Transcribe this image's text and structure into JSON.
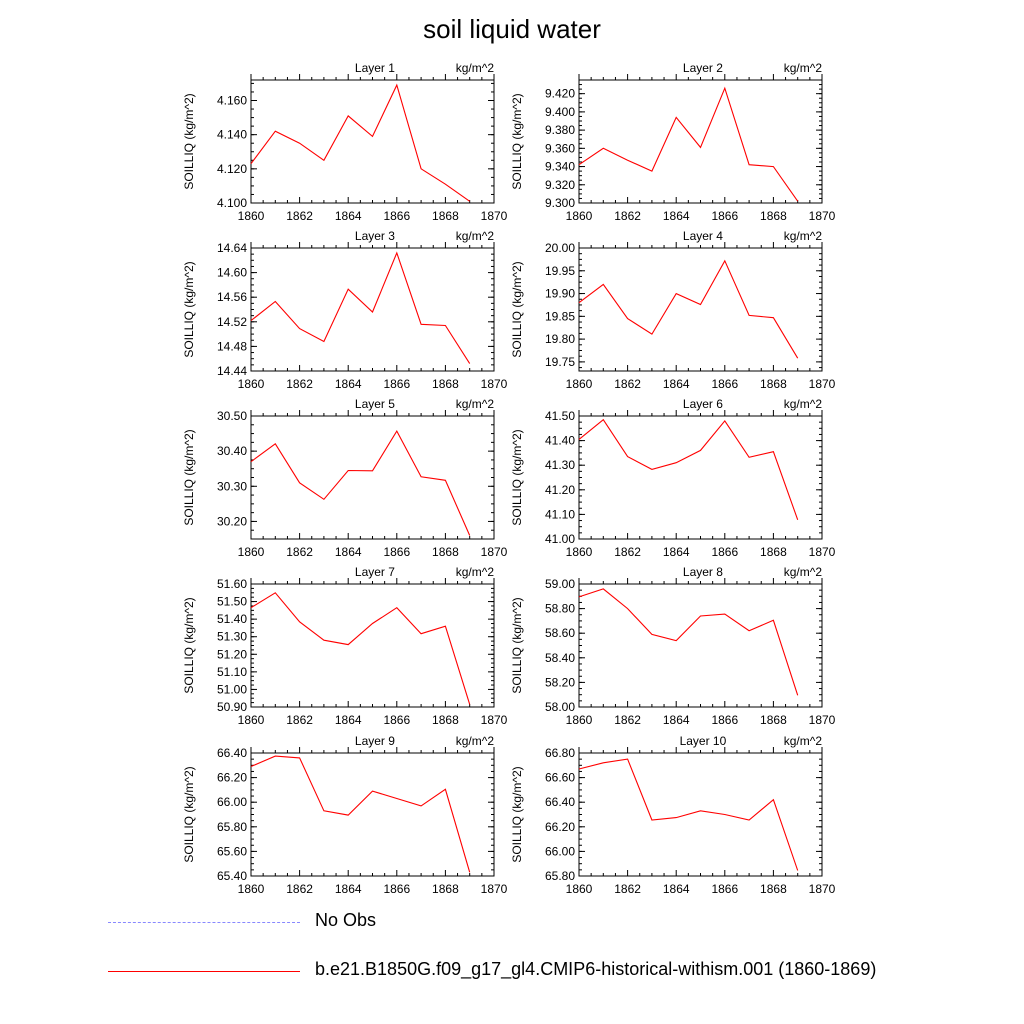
{
  "title": "soil liquid water",
  "legend": [
    {
      "label": "No Obs",
      "color": "#8888ff",
      "style": "dashed"
    },
    {
      "label": "b.e21.B1850G.f09_g17_gl4.CMIP6-historical-withism.001 (1860-1869)",
      "color": "#ff0000",
      "style": "solid"
    }
  ],
  "chart_data": [
    {
      "type": "line",
      "title": "Layer 1",
      "units": "kg/m^2",
      "ylabel": "SOILLIQ  (kg/m^2)",
      "x": [
        1860,
        1861,
        1862,
        1863,
        1864,
        1865,
        1866,
        1867,
        1868,
        1869
      ],
      "xlim": [
        1860,
        1870
      ],
      "xticks": [
        "1860",
        "1862",
        "1864",
        "1866",
        "1868",
        "1870"
      ],
      "ylim": [
        4.1,
        4.172
      ],
      "yticks": [
        "4.100",
        "4.120",
        "4.140",
        "4.160"
      ],
      "series": [
        {
          "values": [
            4.123,
            4.142,
            4.135,
            4.125,
            4.151,
            4.139,
            4.169,
            4.12,
            4.111,
            4.101
          ],
          "color": "#ff0000"
        }
      ]
    },
    {
      "type": "line",
      "title": "Layer 2",
      "units": "kg/m^2",
      "ylabel": "SOILLIQ  (kg/m^2)",
      "x": [
        1860,
        1861,
        1862,
        1863,
        1864,
        1865,
        1866,
        1867,
        1868,
        1869
      ],
      "xlim": [
        1860,
        1870
      ],
      "xticks": [
        "1860",
        "1862",
        "1864",
        "1866",
        "1868",
        "1870"
      ],
      "ylim": [
        9.3,
        9.435
      ],
      "yticks": [
        "9.300",
        "9.320",
        "9.340",
        "9.360",
        "9.380",
        "9.400",
        "9.420"
      ],
      "series": [
        {
          "values": [
            9.342,
            9.36,
            9.347,
            9.335,
            9.394,
            9.361,
            9.426,
            9.342,
            9.34,
            9.302
          ],
          "color": "#ff0000"
        }
      ]
    },
    {
      "type": "line",
      "title": "Layer 3",
      "units": "kg/m^2",
      "ylabel": "SOILLIQ  (kg/m^2)",
      "x": [
        1860,
        1861,
        1862,
        1863,
        1864,
        1865,
        1866,
        1867,
        1868,
        1869
      ],
      "xlim": [
        1860,
        1870
      ],
      "xticks": [
        "1860",
        "1862",
        "1864",
        "1866",
        "1868",
        "1870"
      ],
      "ylim": [
        14.44,
        14.64
      ],
      "yticks": [
        "14.44",
        "14.48",
        "14.52",
        "14.56",
        "14.60",
        "14.64"
      ],
      "series": [
        {
          "values": [
            14.522,
            14.553,
            14.509,
            14.488,
            14.573,
            14.536,
            14.632,
            14.516,
            14.514,
            14.452
          ],
          "color": "#ff0000"
        }
      ]
    },
    {
      "type": "line",
      "title": "Layer 4",
      "units": "kg/m^2",
      "ylabel": "SOILLIQ  (kg/m^2)",
      "x": [
        1860,
        1861,
        1862,
        1863,
        1864,
        1865,
        1866,
        1867,
        1868,
        1869
      ],
      "xlim": [
        1860,
        1870
      ],
      "xticks": [
        "1860",
        "1862",
        "1864",
        "1866",
        "1868",
        "1870"
      ],
      "ylim": [
        19.73,
        20.0
      ],
      "yticks": [
        "19.75",
        "19.80",
        "19.85",
        "19.90",
        "19.95",
        "20.00"
      ],
      "series": [
        {
          "values": [
            19.88,
            19.92,
            19.845,
            19.811,
            19.9,
            19.876,
            19.972,
            19.852,
            19.847,
            19.758
          ],
          "color": "#ff0000"
        }
      ]
    },
    {
      "type": "line",
      "title": "Layer 5",
      "units": "kg/m^2",
      "ylabel": "SOILLIQ  (kg/m^2)",
      "x": [
        1860,
        1861,
        1862,
        1863,
        1864,
        1865,
        1866,
        1867,
        1868,
        1869
      ],
      "xlim": [
        1860,
        1870
      ],
      "xticks": [
        "1860",
        "1862",
        "1864",
        "1866",
        "1868",
        "1870"
      ],
      "ylim": [
        30.15,
        30.5
      ],
      "yticks": [
        "30.20",
        "30.30",
        "30.40",
        "30.50"
      ],
      "series": [
        {
          "values": [
            30.37,
            30.421,
            30.31,
            30.263,
            30.345,
            30.344,
            30.457,
            30.327,
            30.317,
            30.16
          ],
          "color": "#ff0000"
        }
      ]
    },
    {
      "type": "line",
      "title": "Layer 6",
      "units": "kg/m^2",
      "ylabel": "SOILLIQ  (kg/m^2)",
      "x": [
        1860,
        1861,
        1862,
        1863,
        1864,
        1865,
        1866,
        1867,
        1868,
        1869
      ],
      "xlim": [
        1860,
        1870
      ],
      "xticks": [
        "1860",
        "1862",
        "1864",
        "1866",
        "1868",
        "1870"
      ],
      "ylim": [
        41.0,
        41.5
      ],
      "yticks": [
        "41.00",
        "41.10",
        "41.20",
        "41.30",
        "41.40",
        "41.50"
      ],
      "series": [
        {
          "values": [
            41.405,
            41.485,
            41.335,
            41.283,
            41.31,
            41.36,
            41.48,
            41.332,
            41.355,
            41.078
          ],
          "color": "#ff0000"
        }
      ]
    },
    {
      "type": "line",
      "title": "Layer 7",
      "units": "kg/m^2",
      "ylabel": "SOILLIQ  (kg/m^2)",
      "x": [
        1860,
        1861,
        1862,
        1863,
        1864,
        1865,
        1866,
        1867,
        1868,
        1869
      ],
      "xlim": [
        1860,
        1870
      ],
      "xticks": [
        "1860",
        "1862",
        "1864",
        "1866",
        "1868",
        "1870"
      ],
      "ylim": [
        50.9,
        51.6
      ],
      "yticks": [
        "50.90",
        "51.00",
        "51.10",
        "51.20",
        "51.30",
        "51.40",
        "51.50",
        "51.60"
      ],
      "series": [
        {
          "values": [
            51.465,
            51.55,
            51.385,
            51.28,
            51.255,
            51.375,
            51.465,
            51.317,
            51.36,
            50.915
          ],
          "color": "#ff0000"
        }
      ]
    },
    {
      "type": "line",
      "title": "Layer 8",
      "units": "kg/m^2",
      "ylabel": "SOILLIQ  (kg/m^2)",
      "x": [
        1860,
        1861,
        1862,
        1863,
        1864,
        1865,
        1866,
        1867,
        1868,
        1869
      ],
      "xlim": [
        1860,
        1870
      ],
      "xticks": [
        "1860",
        "1862",
        "1864",
        "1866",
        "1868",
        "1870"
      ],
      "ylim": [
        58.0,
        59.0
      ],
      "yticks": [
        "58.00",
        "58.20",
        "58.40",
        "58.60",
        "58.80",
        "59.00"
      ],
      "series": [
        {
          "values": [
            58.895,
            58.96,
            58.8,
            58.59,
            58.54,
            58.74,
            58.755,
            58.62,
            58.705,
            58.095
          ],
          "color": "#ff0000"
        }
      ]
    },
    {
      "type": "line",
      "title": "Layer 9",
      "units": "kg/m^2",
      "ylabel": "SOILLIQ  (kg/m^2)",
      "x": [
        1860,
        1861,
        1862,
        1863,
        1864,
        1865,
        1866,
        1867,
        1868,
        1869
      ],
      "xlim": [
        1860,
        1870
      ],
      "xticks": [
        "1860",
        "1862",
        "1864",
        "1866",
        "1868",
        "1870"
      ],
      "ylim": [
        65.4,
        66.4
      ],
      "yticks": [
        "65.40",
        "65.60",
        "65.80",
        "66.00",
        "66.20",
        "66.40"
      ],
      "series": [
        {
          "values": [
            66.29,
            66.375,
            66.36,
            65.93,
            65.895,
            66.09,
            66.03,
            65.97,
            66.105,
            65.43
          ],
          "color": "#ff0000"
        }
      ]
    },
    {
      "type": "line",
      "title": "Layer 10",
      "units": "kg/m^2",
      "ylabel": "SOILLIQ  (kg/m^2)",
      "x": [
        1860,
        1861,
        1862,
        1863,
        1864,
        1865,
        1866,
        1867,
        1868,
        1869
      ],
      "xlim": [
        1860,
        1870
      ],
      "xticks": [
        "1860",
        "1862",
        "1864",
        "1866",
        "1868",
        "1870"
      ],
      "ylim": [
        65.8,
        66.8
      ],
      "yticks": [
        "65.80",
        "66.00",
        "66.20",
        "66.40",
        "66.60",
        "66.80"
      ],
      "series": [
        {
          "values": [
            66.67,
            66.72,
            66.75,
            66.255,
            66.275,
            66.33,
            66.3,
            66.255,
            66.42,
            65.845
          ],
          "color": "#ff0000"
        }
      ]
    }
  ]
}
